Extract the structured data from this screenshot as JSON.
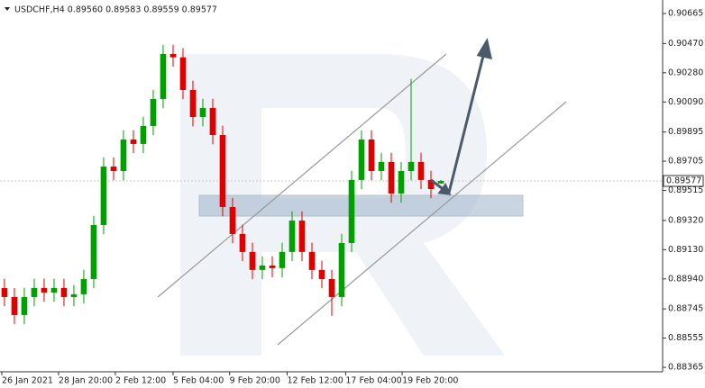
{
  "chart_data": {
    "type": "candlestick",
    "title": "USDCHF,H4  0.89560 0.89583 0.89559 0.89577",
    "up_color": "#00a000",
    "down_color": "#e00000",
    "open": [
      0.8888,
      0.88822,
      0.88705,
      0.88822,
      0.88881,
      0.88851,
      0.88881,
      0.88822,
      0.8884,
      0.88939,
      0.8929,
      0.8967,
      0.89641,
      0.89846,
      0.89817,
      0.89934,
      0.90109,
      0.90402,
      0.9038,
      0.90168,
      0.89992,
      0.90051,
      0.89875,
      0.89407,
      0.89232,
      0.89115,
      0.88998,
      0.89027,
      0.8901,
      0.89115,
      0.89319,
      0.89115,
      0.88998,
      0.88939,
      0.88822,
      0.89173,
      0.89583,
      0.89846,
      0.89641,
      0.897,
      0.89495,
      0.89641,
      0.897,
      0.89583,
      0.8956
    ],
    "high": [
      0.8894,
      0.8888,
      0.88882,
      0.88941,
      0.88941,
      0.88941,
      0.88941,
      0.889,
      0.88999,
      0.8935,
      0.8973,
      0.8973,
      0.89906,
      0.89906,
      0.89994,
      0.90169,
      0.90462,
      0.90462,
      0.9044,
      0.90228,
      0.90111,
      0.90111,
      0.89935,
      0.89467,
      0.89292,
      0.89175,
      0.89087,
      0.89087,
      0.89175,
      0.89379,
      0.89379,
      0.89175,
      0.89058,
      0.88999,
      0.89233,
      0.89643,
      0.89906,
      0.89906,
      0.8976,
      0.8976,
      0.89701,
      0.9024,
      0.8976,
      0.89643,
      0.89583
    ],
    "low": [
      0.88762,
      0.88645,
      0.88645,
      0.88762,
      0.88791,
      0.88791,
      0.88762,
      0.88762,
      0.8878,
      0.88879,
      0.8923,
      0.89581,
      0.89581,
      0.89757,
      0.89757,
      0.89874,
      0.90049,
      0.9032,
      0.90108,
      0.89932,
      0.89932,
      0.89815,
      0.89347,
      0.89172,
      0.89055,
      0.88938,
      0.88938,
      0.8895,
      0.8895,
      0.89055,
      0.89055,
      0.88938,
      0.88879,
      0.887,
      0.88762,
      0.89113,
      0.89523,
      0.89581,
      0.89581,
      0.89435,
      0.89435,
      0.89581,
      0.89523,
      0.89464,
      0.89559
    ],
    "close": [
      0.88822,
      0.88705,
      0.88822,
      0.88881,
      0.88851,
      0.88881,
      0.88822,
      0.8884,
      0.88939,
      0.8929,
      0.8967,
      0.89641,
      0.89846,
      0.89817,
      0.89934,
      0.90109,
      0.90402,
      0.9038,
      0.90168,
      0.89992,
      0.90051,
      0.89875,
      0.89407,
      0.89232,
      0.89115,
      0.88998,
      0.89027,
      0.8901,
      0.89115,
      0.89319,
      0.89115,
      0.88998,
      0.88939,
      0.88822,
      0.89173,
      0.89583,
      0.89846,
      0.89641,
      0.897,
      0.89495,
      0.89641,
      0.897,
      0.89583,
      0.89524,
      0.89577
    ],
    "xlim": [
      -0.45,
      66.36
    ],
    "xticks": [
      {
        "value": -0.27,
        "label": "26 Jan 2021"
      },
      {
        "value": 5.45,
        "label": "28 Jan 20:00"
      },
      {
        "value": 11.18,
        "label": "2 Feb 12:00"
      },
      {
        "value": 17,
        "label": "5 Feb 04:00"
      },
      {
        "value": 22.7,
        "label": "9 Feb 20:00"
      },
      {
        "value": 28.5,
        "label": "12 Feb 12:00"
      },
      {
        "value": 34.4,
        "label": "17 Feb 04:00"
      },
      {
        "value": 40.1,
        "label": "19 Feb 20:00"
      }
    ],
    "ylim": [
      0.88336,
      0.90753
    ],
    "yticks": [
      0.90665,
      {
        "value": 0.9047,
        "label": "0.90470"
      },
      {
        "value": 0.9028,
        "label": "0.90280"
      },
      {
        "value": 0.9009,
        "label": "0.90090"
      },
      0.89895,
      0.89705,
      0.89515,
      {
        "value": 0.8932,
        "label": "0.89320"
      },
      {
        "value": 0.8913,
        "label": "0.89130"
      },
      {
        "value": 0.8894,
        "label": "0.88940"
      },
      0.88745,
      0.88555,
      0.88365
    ],
    "grid": false
  }
}
